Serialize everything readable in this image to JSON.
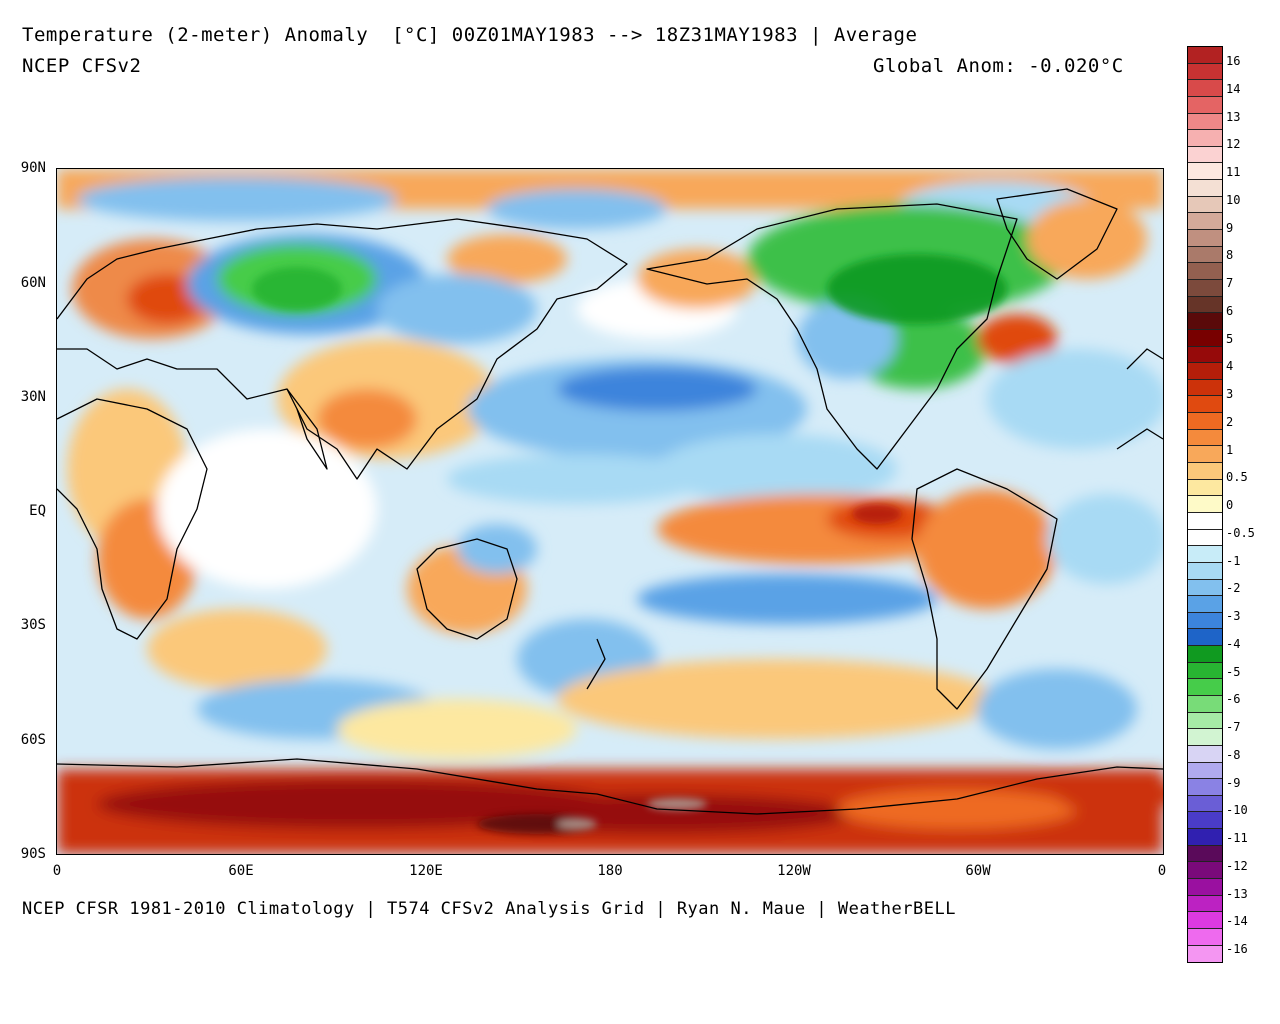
{
  "header": {
    "title": "Temperature (2-meter) Anomaly  [°C] 00Z01MAY1983 --> 18Z31MAY1983 | Average",
    "model": "NCEP CFSv2",
    "global_anom": "Global Anom: -0.020°C"
  },
  "footer": "NCEP CFSR 1981-2010 Climatology | T574 CFSv2 Analysis Grid | Ryan N. Maue | WeatherBELL",
  "axes": {
    "lat_labels": [
      "90N",
      "60N",
      "30N",
      "EQ",
      "30S",
      "60S",
      "90S"
    ],
    "lon_labels": [
      "0",
      "60E",
      "120E",
      "180",
      "120W",
      "60W",
      "0"
    ]
  },
  "colorbar": {
    "labels": [
      "16",
      "14",
      "13",
      "12",
      "11",
      "10",
      "9",
      "8",
      "7",
      "6",
      "5",
      "4",
      "3",
      "2",
      "1",
      "0.5",
      "0",
      "-0.5",
      "-1",
      "-2",
      "-3",
      "-4",
      "-5",
      "-6",
      "-7",
      "-8",
      "-9",
      "-10",
      "-11",
      "-12",
      "-13",
      "-14",
      "-16"
    ],
    "colors": [
      "#b22222",
      "#c83232",
      "#d84a4a",
      "#e46464",
      "#ee8888",
      "#f6b0b0",
      "#fbd2d2",
      "#fde8e0",
      "#f4e0d4",
      "#e6c8b8",
      "#d4aa9a",
      "#c09080",
      "#aa7a6a",
      "#936050",
      "#7c4a3c",
      "#663428",
      "#5a0a0a",
      "#780000",
      "#960a0a",
      "#b41e0a",
      "#cc320a",
      "#e04a10",
      "#ee6a22",
      "#f48a3c",
      "#f8a85a",
      "#fbc87a",
      "#fde8a0",
      "#fefac8",
      "#ffffff",
      "#ffffff",
      "#c8ecf8",
      "#a8daf4",
      "#82c0ee",
      "#5aa2e6",
      "#3c84dc",
      "#1e64c8",
      "#109a20",
      "#28b432",
      "#46cc4a",
      "#78dc78",
      "#a6eaa6",
      "#d2f4d2",
      "#d8d4f4",
      "#b0aaee",
      "#8a82e4",
      "#6a5ed6",
      "#4a3cc8",
      "#3020b0",
      "#5a0a5a",
      "#7a0a7a",
      "#9a10a0",
      "#bc22c2",
      "#dc3ae0",
      "#ee6aee",
      "#f496f2"
    ]
  },
  "regions": [
    {
      "name": "arctic-canada-cold",
      "color": "#3cc04a"
    },
    {
      "name": "siberia-cold",
      "color": "#46cc4a"
    },
    {
      "name": "antarctic-warm",
      "color": "#b41e0a"
    },
    {
      "name": "enso-warm",
      "color": "#ee6a22"
    }
  ]
}
